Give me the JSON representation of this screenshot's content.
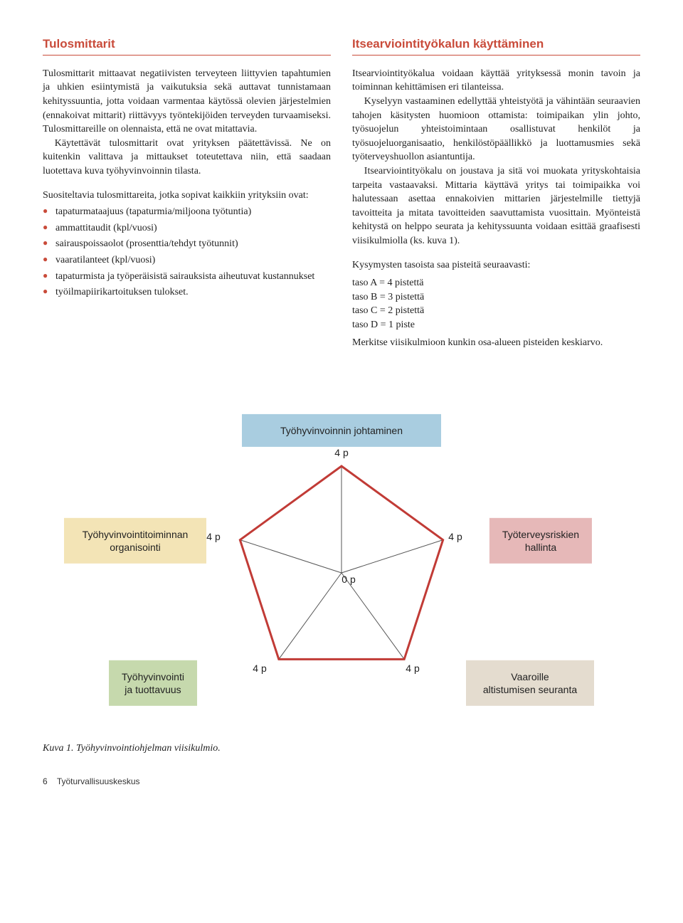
{
  "left": {
    "heading": "Tulosmittarit",
    "p1": "Tulosmittarit mittaavat negatiivisten terveyteen liittyvien tapahtumien ja uhkien esiintymistä ja vaikutuksia sekä auttavat tunnistamaan kehityssuuntia, jotta voidaan varmentaa käytössä olevien järjestelmien (ennakoivat mittarit) riittävyys työntekijöiden terveyden turvaamiseksi. Tulosmittareille on olennaista, että ne ovat mitattavia.",
    "p2": "Käytettävät tulosmittarit ovat yrityksen päätettävissä. Ne on kuitenkin valittava ja mittaukset toteutettava niin, että saadaan luotettava kuva työhyvinvoinnin tilasta.",
    "p3": "Suositeltavia tulosmittareita, jotka sopivat kaikkiin yrityksiin ovat:",
    "bullets": [
      "tapaturmataajuus (tapaturmia/miljoona työtuntia)",
      "ammattitaudit (kpl/vuosi)",
      "sairauspoissaolot (prosenttia/tehdyt työtunnit)",
      "vaaratilanteet (kpl/vuosi)",
      "tapaturmista ja työperäisistä sairauksista aiheutuvat kustannukset",
      "työilmapiirikartoituksen tulokset."
    ]
  },
  "right": {
    "heading": "Itsearviointityökalun käyttäminen",
    "p1": "Itsearviointityökalua voidaan käyttää yrityksessä monin tavoin ja toiminnan kehittämisen eri tilanteissa.",
    "p2": "Kyselyyn vastaaminen edellyttää yhteistyötä ja vähintään seuraavien tahojen käsitysten huomioon ottamista: toimipaikan ylin johto, työsuojelun yhteistoimintaan osallistuvat henkilöt ja työsuojeluorganisaatio, henkilöstöpäällikkö ja luottamusmies sekä työterveyshuollon asiantuntija.",
    "p3": "Itsearviointityökalu on joustava ja sitä voi muokata yrityskohtaisia tarpeita vastaavaksi. Mittaria käyttävä yritys tai toimipaikka voi halutessaan asettaa ennakoivien mittarien järjestelmille tiettyjä tavoitteita ja mitata tavoitteiden saavuttamista vuosittain. Myönteistä kehitystä on helppo seurata ja kehityssuunta voidaan esittää graafisesti viisikulmiolla (ks. kuva 1).",
    "p4": "Kysymysten tasoista saa pisteitä seuraavasti:",
    "scores": [
      "taso A = 4 pistettä",
      "taso B = 3 pistettä",
      "taso C = 2 pistettä",
      "taso D = 1 piste"
    ],
    "p5": "Merkitse viisikulmioon kunkin osa-alueen pisteiden keskiarvo."
  },
  "chart": {
    "type": "radar-pentagon",
    "max_value": 4,
    "center_label": "0 p",
    "tick_label": "4 p",
    "pentagon_stroke": "#c13b36",
    "pentagon_stroke_width": 3,
    "spoke_stroke": "#555555",
    "spoke_stroke_width": 1,
    "nodes": [
      {
        "label": "Työhyvinvoinnin johtaminen",
        "bg": "#a9cde0",
        "pos": "top"
      },
      {
        "label": "Työterveysriskien\nhallinta",
        "bg": "#e6b8b8",
        "pos": "upper-right"
      },
      {
        "label": "Vaaroille\naltistumisen seuranta",
        "bg": "#e4dccf",
        "pos": "lower-right"
      },
      {
        "label": "Työhyvinvointi\nja tuottavuus",
        "bg": "#c6d9ad",
        "pos": "lower-left"
      },
      {
        "label": "Työhyvinvointitoiminnan\norganisointi",
        "bg": "#f3e4b6",
        "pos": "upper-left"
      }
    ]
  },
  "caption": "Kuva 1. Työhyvinvointiohjelman viisikulmio.",
  "footer": {
    "page": "6",
    "org": "Työturvallisuuskeskus"
  }
}
